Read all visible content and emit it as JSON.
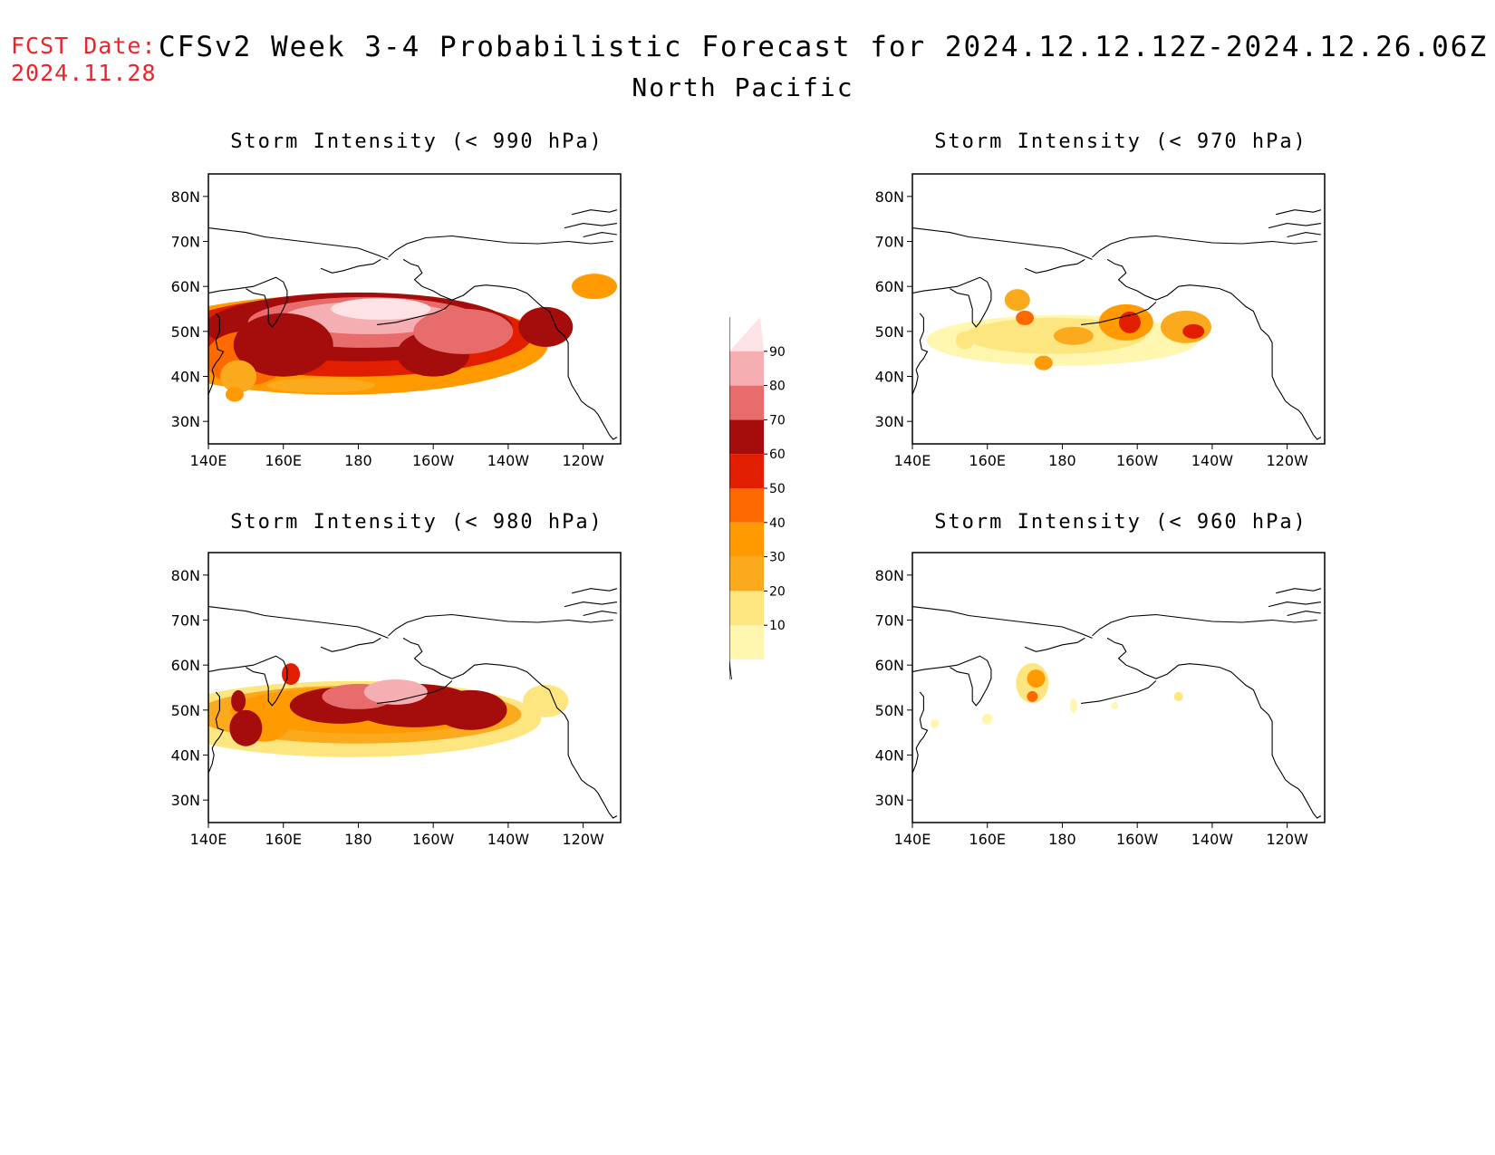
{
  "header": {
    "fcst_label": "FCST Date:",
    "fcst_date": "2024.11.28",
    "title": "CFSv2 Week 3-4 Probabilistic Forecast for 2024.12.12.12Z-2024.12.26.06Z",
    "subtitle": "North Pacific"
  },
  "panels": [
    {
      "id": "p990",
      "title": "Storm Intensity (< 990 hPa)",
      "coverage": "high"
    },
    {
      "id": "p970",
      "title": "Storm Intensity (< 970 hPa)",
      "coverage": "low"
    },
    {
      "id": "p980",
      "title": "Storm Intensity (< 980 hPa)",
      "coverage": "medium"
    },
    {
      "id": "p960",
      "title": "Storm Intensity (< 960 hPa)",
      "coverage": "minimal"
    }
  ],
  "axes": {
    "lat_ticks": [
      "80N",
      "70N",
      "60N",
      "50N",
      "40N",
      "30N"
    ],
    "lon_ticks": [
      "140E",
      "160E",
      "180",
      "160W",
      "140W",
      "120W"
    ]
  },
  "colorbar": {
    "levels": [
      "10",
      "20",
      "30",
      "40",
      "50",
      "60",
      "70",
      "80",
      "90"
    ],
    "colors": [
      "#fff7b0",
      "#fde680",
      "#fbaa1e",
      "#ff9a00",
      "#ff6a00",
      "#e21e00",
      "#a50c0c",
      "#e86c6c",
      "#f5aeb2",
      "#fde3e6"
    ]
  }
}
